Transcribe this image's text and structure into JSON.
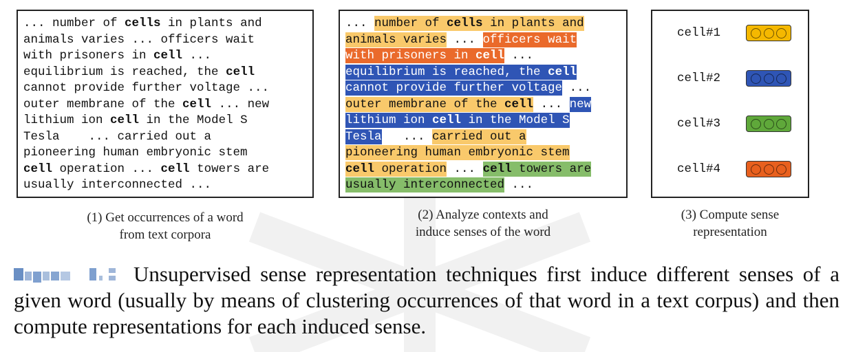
{
  "panel1": {
    "lines": [
      [
        {
          "t": "... number of "
        },
        {
          "t": "cells",
          "b": true
        },
        {
          "t": " in plants and"
        }
      ],
      [
        {
          "t": "animals varies ... officers wait"
        }
      ],
      [
        {
          "t": "with prisoners in "
        },
        {
          "t": "cell",
          "b": true
        },
        {
          "t": " ..."
        }
      ],
      [
        {
          "t": "equilibrium is reached, the "
        },
        {
          "t": "cell",
          "b": true
        }
      ],
      [
        {
          "t": "cannot provide further voltage ..."
        }
      ],
      [
        {
          "t": "outer membrane of the "
        },
        {
          "t": "cell",
          "b": true
        },
        {
          "t": " ... new"
        }
      ],
      [
        {
          "t": "lithium ion "
        },
        {
          "t": "cell",
          "b": true
        },
        {
          "t": " in the Model S"
        }
      ],
      [
        {
          "t": "Tesla    ... carried out a"
        }
      ],
      [
        {
          "t": "pioneering human embryonic stem"
        }
      ],
      [
        {
          "t": "cell",
          "b": true
        },
        {
          "t": " operation ... "
        },
        {
          "t": "cell",
          "b": true
        },
        {
          "t": " towers are"
        }
      ],
      [
        {
          "t": "usually interconnected ..."
        }
      ]
    ],
    "caption_line1": "(1) Get occurrences of a word",
    "caption_line2": "from text corpora"
  },
  "panel2": {
    "lines": [
      [
        {
          "t": "... "
        },
        {
          "h": "y",
          "parts": [
            {
              "t": "number of "
            },
            {
              "t": "cells",
              "b": true
            },
            {
              "t": " in plants and"
            }
          ]
        }
      ],
      [
        {
          "h": "y",
          "parts": [
            {
              "t": "animals varies"
            }
          ]
        },
        {
          "t": " ... "
        },
        {
          "h": "o",
          "parts": [
            {
              "t": "officers wait"
            }
          ]
        }
      ],
      [
        {
          "h": "o",
          "parts": [
            {
              "t": "with prisoners in "
            },
            {
              "t": "cell",
              "b": true
            }
          ]
        },
        {
          "t": " ..."
        }
      ],
      [
        {
          "h": "bl",
          "parts": [
            {
              "t": "equilibrium is reached, the "
            },
            {
              "t": "cell",
              "b": true
            }
          ]
        }
      ],
      [
        {
          "h": "bl",
          "parts": [
            {
              "t": "cannot provide further voltage"
            }
          ]
        },
        {
          "t": " ..."
        }
      ],
      [
        {
          "h": "y",
          "parts": [
            {
              "t": "outer membrane of the "
            },
            {
              "t": "cell",
              "b": true
            }
          ]
        },
        {
          "t": " ... "
        },
        {
          "h": "bl",
          "parts": [
            {
              "t": "new"
            }
          ]
        }
      ],
      [
        {
          "h": "bl",
          "parts": [
            {
              "t": "lithium ion "
            },
            {
              "t": "cell",
              "b": true
            },
            {
              "t": " in the Model S"
            }
          ]
        }
      ],
      [
        {
          "h": "bl",
          "parts": [
            {
              "t": "Tesla"
            }
          ]
        },
        {
          "t": "   ... "
        },
        {
          "h": "y",
          "parts": [
            {
              "t": "carried out a"
            }
          ]
        }
      ],
      [
        {
          "h": "y",
          "parts": [
            {
              "t": "pioneering human embryonic stem"
            }
          ]
        }
      ],
      [
        {
          "h": "y",
          "parts": [
            {
              "t": "cell",
              "b": true
            },
            {
              "t": " operation"
            }
          ]
        },
        {
          "t": " ... "
        },
        {
          "h": "g",
          "parts": [
            {
              "t": "cell",
              "b": true
            },
            {
              "t": " towers are"
            }
          ]
        }
      ],
      [
        {
          "h": "g",
          "parts": [
            {
              "t": "usually interconnected"
            }
          ]
        },
        {
          "t": " ..."
        }
      ]
    ],
    "caption_line1": "(2) Analyze contexts and",
    "caption_line2": "induce senses of the word"
  },
  "panel3": {
    "cells": [
      {
        "label": "cell#1",
        "color": "#f5b800"
      },
      {
        "label": "cell#2",
        "color": "#2f55b5"
      },
      {
        "label": "cell#3",
        "color": "#5fa83a"
      },
      {
        "label": "cell#4",
        "color": "#e8601e"
      }
    ],
    "caption_line1": "(3) Compute sense",
    "caption_line2": "representation"
  },
  "figure_caption": {
    "text": "Unsupervised sense representation techniques first induce different senses of a given word (usually by means of clustering occurrences of that word in a text corpus) and then compute representations for each induced sense."
  },
  "colors": {
    "yellow": "#f9c96b",
    "orange": "#ea6a2b",
    "blue": "#2f55b5",
    "green": "#86bd6a"
  }
}
